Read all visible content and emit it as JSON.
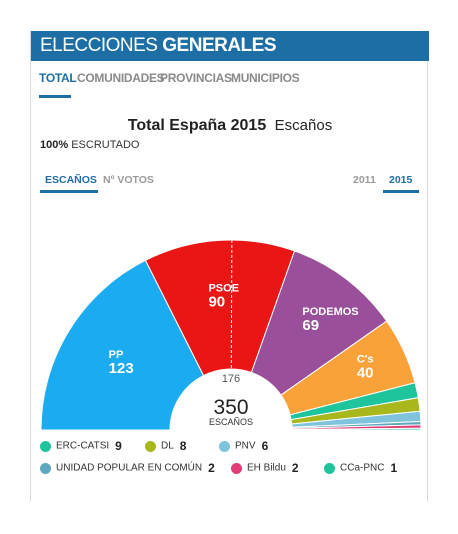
{
  "header": {
    "title_light": "ELECCIONES",
    "title_bold": "GENERALES"
  },
  "tabs": [
    {
      "label": "TOTAL",
      "active": true
    },
    {
      "label": "COMUNIDADES",
      "active": false
    },
    {
      "label": "PROVINCIAS",
      "active": false
    },
    {
      "label": "MUNICIPIOS",
      "active": false
    }
  ],
  "region": {
    "name": "Total España 2015",
    "unit": "Escaños"
  },
  "scrutiny": {
    "percent": "100%",
    "label": "ESCRUTADO"
  },
  "view_tabs": [
    {
      "label": "ESCAÑOS",
      "active": true
    },
    {
      "label": "Nº VOTOS",
      "active": false
    }
  ],
  "year_tabs": [
    {
      "label": "2011",
      "active": false
    },
    {
      "label": "2015",
      "active": true
    }
  ],
  "chart_data": {
    "type": "pie",
    "total_seats": 350,
    "total_label": "350",
    "total_unit": "ESCAÑOS",
    "majority_label": "176",
    "majority": 176,
    "series": [
      {
        "name": "PP",
        "value": 123,
        "label": "123",
        "color": "#1aabf0"
      },
      {
        "name": "PSOE",
        "value": 90,
        "label": "90",
        "color": "#ea1515"
      },
      {
        "name": "PODEMOS",
        "value": 69,
        "label": "69",
        "color": "#9a4f9a"
      },
      {
        "name": "C's",
        "value": 40,
        "label": "40",
        "color": "#faa23a"
      },
      {
        "name": "ERC-CATSI",
        "value": 9,
        "label": "9",
        "color": "#1ec49c"
      },
      {
        "name": "DL",
        "value": 8,
        "label": "8",
        "color": "#a8b81c"
      },
      {
        "name": "PNV",
        "value": 6,
        "label": "6",
        "color": "#7fc4dc"
      },
      {
        "name": "UNIDAD POPULAR EN COMÚN",
        "value": 2,
        "label": "2",
        "color": "#5da8be"
      },
      {
        "name": "EH Bildu",
        "value": 2,
        "label": "2",
        "color": "#e13c78"
      },
      {
        "name": "CCa-PNC",
        "value": 1,
        "label": "1",
        "color": "#1ec49c"
      }
    ]
  },
  "legend": [
    {
      "name": "ERC-CATSI",
      "count": "9",
      "color": "#1ec49c"
    },
    {
      "name": "DL",
      "count": "8",
      "color": "#a8b81c"
    },
    {
      "name": "PNV",
      "count": "6",
      "color": "#7fc4dc"
    },
    {
      "name": "UNIDAD POPULAR EN COMÚN",
      "count": "2",
      "color": "#5da8be"
    },
    {
      "name": "EH Bildu",
      "count": "2",
      "color": "#e13c78"
    },
    {
      "name": "CCa-PNC",
      "count": "1",
      "color": "#1ec49c"
    }
  ]
}
